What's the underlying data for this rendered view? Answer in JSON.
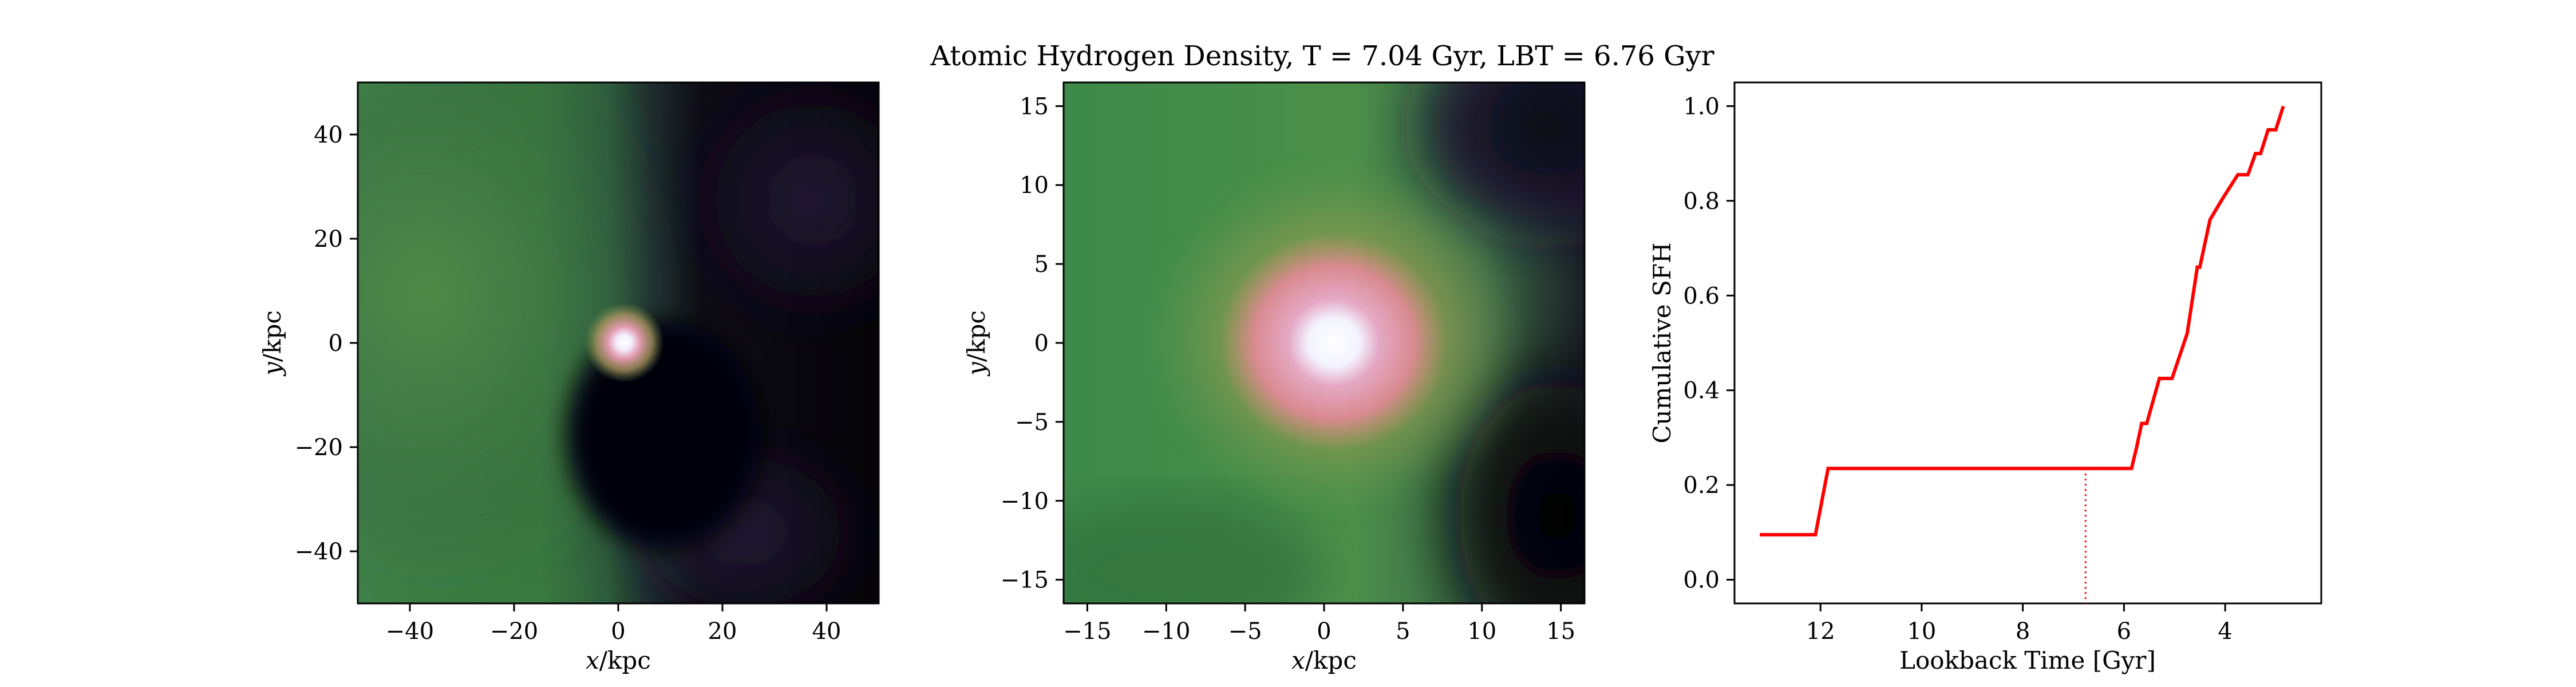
{
  "title": "Atomic Hydrogen Density, T = 7.04 Gyr, LBT = 6.76 Gyr",
  "panels": {
    "left": {
      "x_var": "x",
      "x_unit": "/kpc",
      "y_var": "y",
      "y_unit": "/kpc",
      "xticks": [
        "−40",
        "−20",
        "0",
        "20",
        "40"
      ],
      "yticks": [
        "−40",
        "−20",
        "0",
        "20",
        "40"
      ]
    },
    "middle": {
      "x_var": "x",
      "x_unit": "/kpc",
      "y_var": "y",
      "y_unit": "/kpc",
      "xticks": [
        "−15",
        "−10",
        "−5",
        "0",
        "5",
        "10",
        "15"
      ],
      "yticks": [
        "−15",
        "−10",
        "−5",
        "0",
        "5",
        "10",
        "15"
      ]
    }
  },
  "colors": {
    "line": "#ff0000",
    "map_background": "#000000",
    "map_green": "#3f7a3a",
    "map_core": "#ffffff",
    "map_pink": "#d9879a"
  },
  "chart_data": [
    {
      "type": "heatmap",
      "title": "",
      "xlabel": "x /kpc",
      "ylabel": "y /kpc",
      "xlim": [
        -50,
        50
      ],
      "ylim": [
        -50,
        50
      ],
      "xticks": [
        -40,
        -20,
        0,
        20,
        40
      ],
      "yticks": [
        -40,
        -20,
        0,
        20,
        40
      ],
      "colormap": "cubehelix-like (black → purple → green → pink → white)",
      "peak_location": [
        0,
        0
      ]
    },
    {
      "type": "heatmap",
      "title": "",
      "xlabel": "x /kpc",
      "ylabel": "y /kpc",
      "xlim": [
        -16.5,
        16.5
      ],
      "ylim": [
        -16.5,
        16.5
      ],
      "xticks": [
        -15,
        -10,
        -5,
        0,
        5,
        10,
        15
      ],
      "yticks": [
        -15,
        -10,
        -5,
        0,
        5,
        10,
        15
      ],
      "colormap": "cubehelix-like (black → purple → green → pink → white)",
      "peak_location": [
        0,
        0
      ]
    },
    {
      "type": "line",
      "title": "",
      "xlabel": "Lookback Time [Gyr]",
      "ylabel": "Cumulative SFH",
      "xlim": [
        13.7,
        2.1
      ],
      "ylim": [
        -0.05,
        1.05
      ],
      "xticks": [
        12,
        10,
        8,
        6,
        4
      ],
      "yticks": [
        0.0,
        0.2,
        0.4,
        0.6,
        0.8,
        1.0
      ],
      "x_tick_labels": [
        "12",
        "10",
        "8",
        "6",
        "4"
      ],
      "y_tick_labels": [
        "0.0",
        "0.2",
        "0.4",
        "0.6",
        "0.8",
        "1.0"
      ],
      "series": [
        {
          "x": [
            13.2,
            12.1,
            11.85,
            5.85,
            5.75,
            5.65,
            5.55,
            5.3,
            5.05,
            4.75,
            4.55,
            4.5,
            4.3,
            4.05,
            3.75,
            3.55,
            3.4,
            3.3,
            3.15,
            3.0,
            2.85
          ],
          "y": [
            0.095,
            0.095,
            0.235,
            0.235,
            0.28,
            0.33,
            0.33,
            0.425,
            0.425,
            0.52,
            0.66,
            0.66,
            0.76,
            0.805,
            0.855,
            0.855,
            0.9,
            0.9,
            0.95,
            0.95,
            1.0
          ]
        }
      ],
      "vline": {
        "x": 6.76,
        "y_top": 0.235,
        "style": "dotted"
      }
    }
  ]
}
